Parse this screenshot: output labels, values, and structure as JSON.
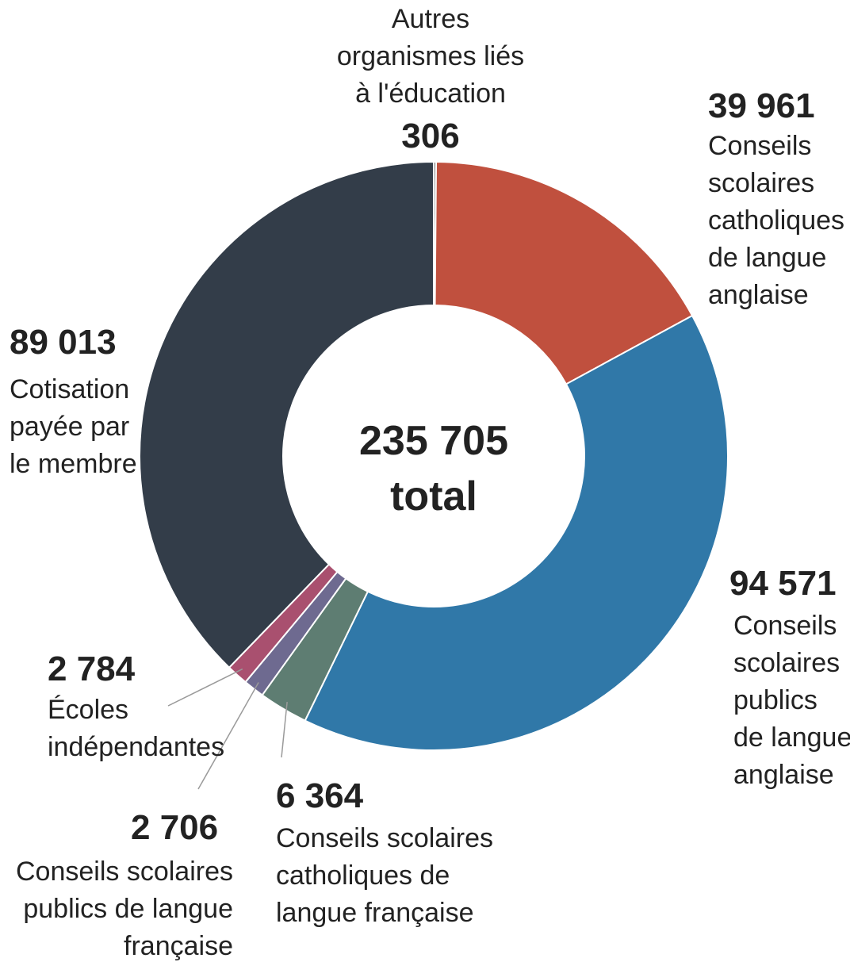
{
  "chart_data": {
    "type": "pie",
    "variant": "donut",
    "total": "235 705",
    "total_label": "total",
    "slices": [
      {
        "value": 306,
        "value_label": "306",
        "label": [
          "Autres",
          "organismes liés",
          "à l'éducation"
        ],
        "color": "#6b6b6b"
      },
      {
        "value": 39961,
        "value_label": "39 961",
        "label": [
          "Conseils",
          "scolaires",
          "catholiques",
          "de langue",
          "anglaise"
        ],
        "color": "#c0503e"
      },
      {
        "value": 94571,
        "value_label": "94 571",
        "label": [
          "Conseils",
          "scolaires",
          "publics",
          "de langue",
          "anglaise"
        ],
        "color": "#3078a8"
      },
      {
        "value": 6364,
        "value_label": "6 364",
        "label": [
          "Conseils scolaires",
          "catholiques de",
          "langue française"
        ],
        "color": "#5e7d72"
      },
      {
        "value": 2706,
        "value_label": "2 706",
        "label": [
          "Conseils scolaires",
          "publics de langue",
          "française"
        ],
        "color": "#6e6a90"
      },
      {
        "value": 2784,
        "value_label": "2 784",
        "label": [
          "Écoles",
          "indépendantes"
        ],
        "color": "#a9506f"
      },
      {
        "value": 89013,
        "value_label": "89 013",
        "label": [
          "Cotisation",
          "payée par",
          "le membre"
        ],
        "color": "#333d49"
      }
    ]
  }
}
